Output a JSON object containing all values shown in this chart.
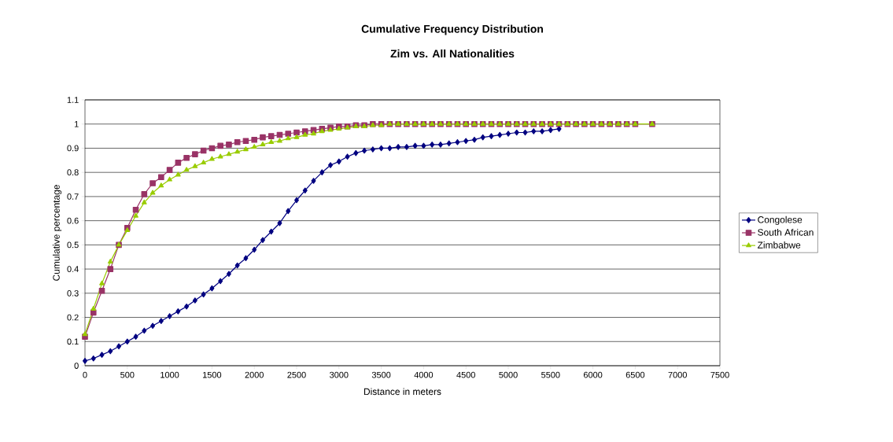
{
  "chart_data": {
    "type": "line",
    "title": "Cumulative Frequency Distribution",
    "subtitle": "Zim vs. All Nationalities",
    "xlabel": "Distance in meters",
    "ylabel": "Cumulative percentage",
    "x": [
      0,
      100,
      200,
      300,
      400,
      500,
      600,
      700,
      800,
      900,
      1000,
      1100,
      1200,
      1300,
      1400,
      1500,
      1600,
      1700,
      1800,
      1900,
      2000,
      2100,
      2200,
      2300,
      2400,
      2500,
      2600,
      2700,
      2800,
      2900,
      3000,
      3100,
      3200,
      3300,
      3400,
      3500,
      3600,
      3700,
      3800,
      3900,
      4000,
      4100,
      4200,
      4300,
      4400,
      4500,
      4600,
      4700,
      4800,
      4900,
      5000,
      5100,
      5200,
      5300,
      5400,
      5500,
      5600,
      5700,
      5800,
      5900,
      6000,
      6100,
      6200,
      6300,
      6400,
      6500,
      6700
    ],
    "series": [
      {
        "name": "Congolese",
        "color": "#000080",
        "marker": "diamond",
        "values": [
          0.02,
          0.03,
          0.045,
          0.06,
          0.08,
          0.1,
          0.12,
          0.145,
          0.165,
          0.185,
          0.205,
          0.225,
          0.245,
          0.27,
          0.295,
          0.32,
          0.35,
          0.38,
          0.415,
          0.445,
          0.48,
          0.52,
          0.555,
          0.59,
          0.64,
          0.685,
          0.725,
          0.765,
          0.8,
          0.83,
          0.845,
          0.865,
          0.88,
          0.89,
          0.895,
          0.9,
          0.9,
          0.905,
          0.905,
          0.91,
          0.91,
          0.915,
          0.915,
          0.92,
          0.925,
          0.93,
          0.935,
          0.945,
          0.95,
          0.955,
          0.96,
          0.965,
          0.965,
          0.97,
          0.97,
          0.975,
          0.98,
          null,
          null,
          null,
          null,
          null,
          null,
          null,
          null,
          null,
          null
        ]
      },
      {
        "name": "South African",
        "color": "#993366",
        "marker": "square",
        "values": [
          0.12,
          0.22,
          0.31,
          0.4,
          0.5,
          0.57,
          0.645,
          0.71,
          0.755,
          0.78,
          0.81,
          0.84,
          0.86,
          0.875,
          0.89,
          0.9,
          0.91,
          0.915,
          0.925,
          0.93,
          0.935,
          0.945,
          0.95,
          0.955,
          0.96,
          0.965,
          0.97,
          0.975,
          0.98,
          0.985,
          0.99,
          0.99,
          0.995,
          0.995,
          1,
          1,
          1,
          1,
          1,
          1,
          1,
          1,
          1,
          1,
          1,
          1,
          1,
          1,
          1,
          1,
          1,
          1,
          1,
          1,
          1,
          1,
          1,
          1,
          1,
          1,
          1,
          1,
          1,
          1,
          1,
          1,
          1
        ]
      },
      {
        "name": "Zimbabwe",
        "color": "#99cc00",
        "marker": "triangle",
        "values": [
          0.13,
          0.235,
          0.34,
          0.43,
          0.5,
          0.56,
          0.62,
          0.675,
          0.715,
          0.745,
          0.77,
          0.79,
          0.81,
          0.825,
          0.84,
          0.855,
          0.865,
          0.875,
          0.885,
          0.895,
          0.905,
          0.915,
          0.925,
          0.93,
          0.94,
          0.945,
          0.955,
          0.96,
          0.97,
          0.975,
          0.98,
          0.985,
          0.99,
          0.99,
          0.995,
          0.995,
          1,
          1,
          1,
          1,
          1,
          1,
          1,
          1,
          1,
          1,
          1,
          1,
          1,
          1,
          1,
          1,
          1,
          1,
          1,
          1,
          1,
          1,
          1,
          1,
          1,
          1,
          1,
          1,
          1,
          1,
          1
        ]
      }
    ],
    "xlim": [
      0,
      7500
    ],
    "xticks": [
      0,
      500,
      1000,
      1500,
      2000,
      2500,
      3000,
      3500,
      4000,
      4500,
      5000,
      5500,
      6000,
      6500,
      7000,
      7500
    ],
    "ylim": [
      0,
      1.1
    ],
    "yticks": [
      0,
      0.1,
      0.2,
      0.3,
      0.4,
      0.5,
      0.6,
      0.7,
      0.8,
      0.9,
      1,
      1.1
    ],
    "grid": "y",
    "legend": "right",
    "line_style": "solid"
  }
}
